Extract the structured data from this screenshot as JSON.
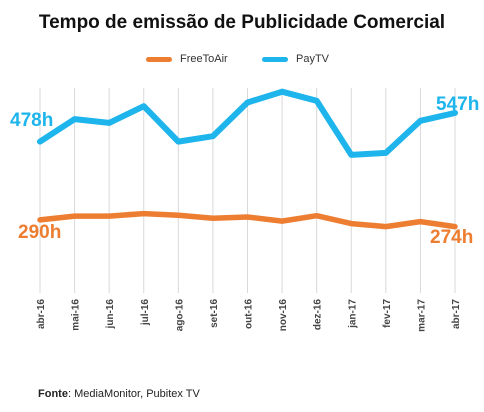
{
  "title": "Tempo de emissão de Publicidade Comercial",
  "colors": {
    "freetoair": "#ed7d31",
    "paytv": "#1eb4ec",
    "grid": "#d9d9d9"
  },
  "end_labels": {
    "paytv_start": "478h",
    "paytv_end": "547h",
    "freetoair_start": "290h",
    "freetoair_end": "274h"
  },
  "source": {
    "label": "Fonte",
    "text": ": MediaMonitor, Pubitex TV"
  },
  "chart_data": {
    "type": "line",
    "categories": [
      "abr-16",
      "mai-16",
      "jun-16",
      "jul-16",
      "ago-16",
      "set-16",
      "out-16",
      "nov-16",
      "dez-16",
      "jan-17",
      "fev-17",
      "mar-17",
      "abr-17"
    ],
    "series": [
      {
        "name": "FreeToAir",
        "values": [
          290,
          299,
          299,
          305,
          301,
          294,
          297,
          287,
          300,
          281,
          274,
          286,
          274
        ]
      },
      {
        "name": "PayTV",
        "values": [
          478,
          532,
          523,
          563,
          478,
          491,
          572,
          598,
          576,
          446,
          451,
          528,
          547
        ]
      }
    ],
    "legend": "top-center",
    "grid": "vertical",
    "ylim": [
      100,
      650
    ]
  }
}
